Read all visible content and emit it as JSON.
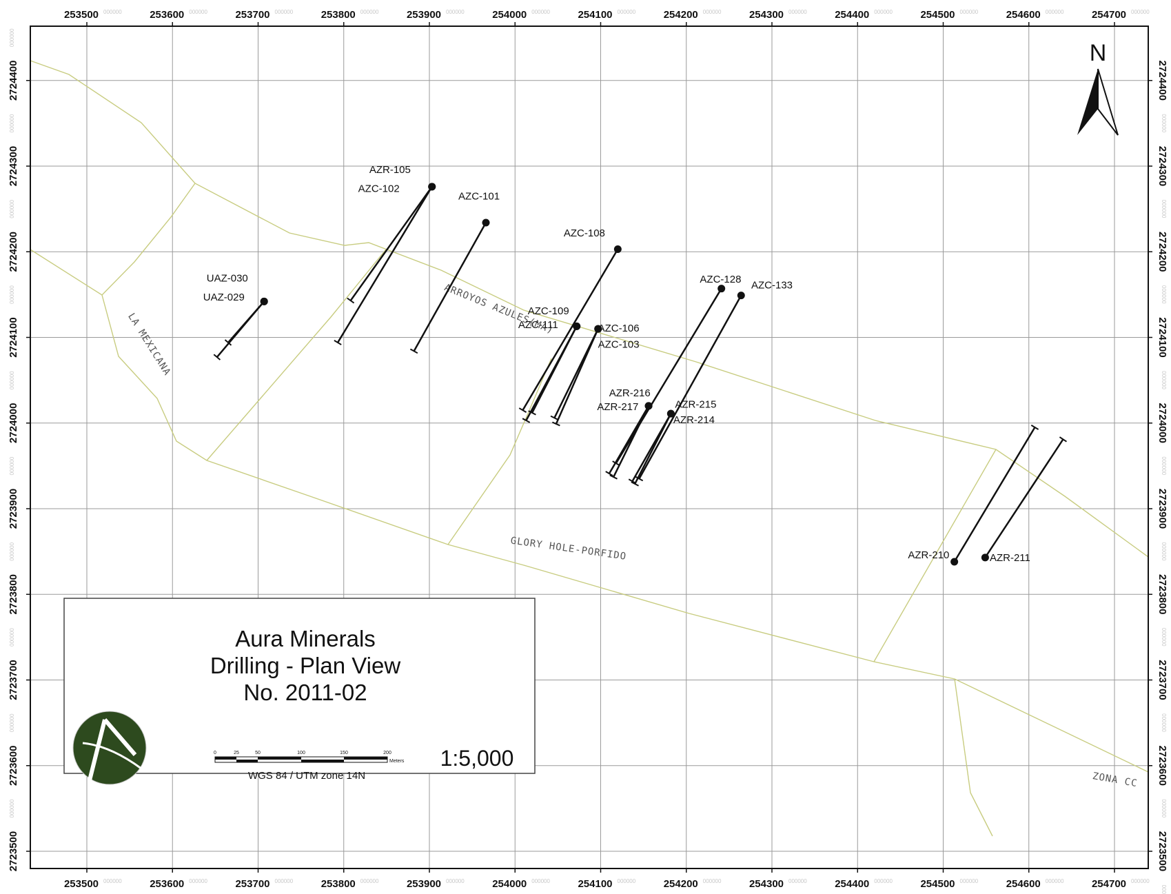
{
  "frame": {
    "x_ticks": [
      "253500",
      "253600",
      "253700",
      "253800",
      "253900",
      "254000",
      "254100",
      "254200",
      "254300",
      "254400",
      "254500",
      "254600",
      "254700"
    ],
    "y_ticks": [
      "2723500",
      "2723600",
      "2723700",
      "2723800",
      "2723900",
      "2724000",
      "2724100",
      "2724200",
      "2724300",
      "2724400"
    ],
    "tick_suffix": "000000"
  },
  "north_arrow": {
    "label": "N"
  },
  "area_labels": [
    {
      "text": "LA MEXICANA",
      "x": 253570,
      "y": 2724090,
      "rotate": 58
    },
    {
      "text": "ARROYOS AZULES(MA)",
      "x": 253980,
      "y": 2724130,
      "rotate": 22
    },
    {
      "text": "GLORY HOLE-PORFIDO",
      "x": 254062,
      "y": 2723850,
      "rotate": 8
    },
    {
      "text": "ZONA CC",
      "x": 254700,
      "y": 2723580,
      "rotate": 10
    }
  ],
  "drill_holes": [
    {
      "id": "UAZ-030",
      "label_x": 253664,
      "label_y": 2724165,
      "collar": [
        253707,
        2724142
      ],
      "toe": [
        253652,
        2724077
      ]
    },
    {
      "id": "UAZ-029",
      "label_x": 253660,
      "label_y": 2724143,
      "collar": [
        253707,
        2724142
      ],
      "toe": [
        253665,
        2724094
      ]
    },
    {
      "id": "AZR-105",
      "label_x": 253854,
      "label_y": 2724292,
      "collar": [
        253903,
        2724276
      ],
      "toe": [
        253808,
        2724143
      ]
    },
    {
      "id": "AZC-102",
      "label_x": 253841,
      "label_y": 2724270,
      "collar": [
        253903,
        2724276
      ],
      "toe": [
        253793,
        2724094
      ]
    },
    {
      "id": "AZC-101",
      "label_x": 253958,
      "label_y": 2724261,
      "collar": [
        253966,
        2724234
      ],
      "toe": [
        253882,
        2724084
      ]
    },
    {
      "id": "AZC-108",
      "label_x": 254081,
      "label_y": 2724218,
      "collar": [
        254120,
        2724203
      ],
      "toe": [
        254009,
        2724015
      ]
    },
    {
      "id": "AZC-109",
      "label_x": 254039,
      "label_y": 2724127,
      "collar": [
        254072,
        2724113
      ],
      "toe": [
        254020,
        2724012
      ]
    },
    {
      "id": "AZC-111",
      "label_x": 254027,
      "label_y": 2724111,
      "collar": [
        254072,
        2724113
      ],
      "toe": [
        254013,
        2724003
      ]
    },
    {
      "id": "AZC-106",
      "label_x": 254121,
      "label_y": 2724107,
      "collar": [
        254097,
        2724110
      ],
      "toe": [
        254046,
        2724006
      ]
    },
    {
      "id": "AZC-103",
      "label_x": 254121,
      "label_y": 2724088,
      "collar": [
        254097,
        2724110
      ],
      "toe": [
        254048,
        2723999
      ]
    },
    {
      "id": "AZC-128",
      "label_x": 254240,
      "label_y": 2724164,
      "collar": [
        254241,
        2724157
      ],
      "toe": [
        254118,
        2723953
      ]
    },
    {
      "id": "AZC-133",
      "label_x": 254300,
      "label_y": 2724157,
      "collar": [
        254264,
        2724149
      ],
      "toe": [
        254145,
        2723935
      ]
    },
    {
      "id": "AZR-216",
      "label_x": 254134,
      "label_y": 2724031,
      "collar": [
        254156,
        2724020
      ],
      "toe": [
        254110,
        2723941
      ]
    },
    {
      "id": "AZR-217",
      "label_x": 254120,
      "label_y": 2724015,
      "collar": [
        254156,
        2724020
      ],
      "toe": [
        254115,
        2723937
      ]
    },
    {
      "id": "AZR-215",
      "label_x": 254211,
      "label_y": 2724018,
      "collar": [
        254182,
        2724011
      ],
      "toe": [
        254137,
        2723932
      ]
    },
    {
      "id": "AZR-214",
      "label_x": 254209,
      "label_y": 2724000,
      "collar": [
        254182,
        2724011
      ],
      "toe": [
        254140,
        2723929
      ]
    },
    {
      "id": "AZR-210",
      "label_x": 254483,
      "label_y": 2723842,
      "collar": [
        254513,
        2723838
      ],
      "toe": [
        254607,
        2723995
      ]
    },
    {
      "id": "AZR-211",
      "label_x": 254578,
      "label_y": 2723839,
      "collar": [
        254549,
        2723843
      ],
      "toe": [
        254640,
        2723981
      ]
    }
  ],
  "legend": {
    "company": "Aura Minerals",
    "subtitle": "Drilling - Plan View",
    "number": "No. 2011-02",
    "scale": "1:5,000",
    "scalebar_ticks": [
      "0",
      "25",
      "50",
      "100",
      "150",
      "200"
    ],
    "scalebar_unit": "Meters",
    "crs": "WGS 84 / UTM zone 14N"
  },
  "colors": {
    "grid": "#9a9a9a",
    "boundary": "#c8cc80",
    "hole": "#111111",
    "logo_green": "#2d4a1e"
  }
}
